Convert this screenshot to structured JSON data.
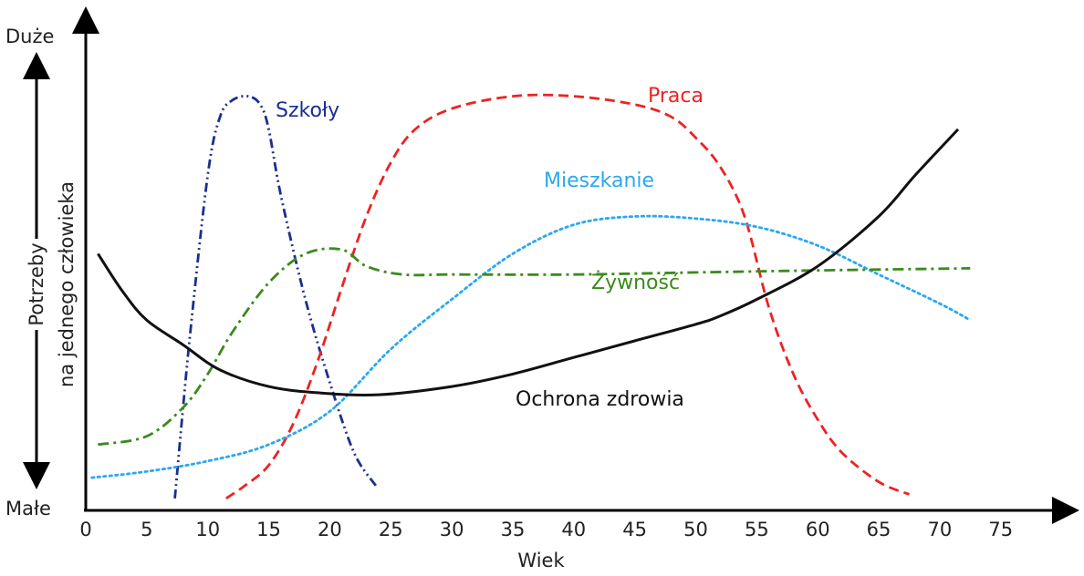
{
  "chart_data": {
    "type": "line",
    "xlabel": "Wiek",
    "ylabel_line1": "Potrzeby",
    "ylabel_line2": "na jednego człowieka",
    "y_top_label": "Duże",
    "y_bottom_label": "Małe",
    "xlim": [
      0,
      80
    ],
    "ylim": [
      0,
      100
    ],
    "x_ticks": [
      0,
      5,
      10,
      15,
      20,
      25,
      30,
      35,
      40,
      45,
      50,
      55,
      60,
      65,
      70,
      75
    ],
    "grid": false,
    "legend": "none",
    "series": [
      {
        "name": "Szkoły",
        "color": "#1a2f8f",
        "dash": "dashdotdot",
        "points": [
          [
            7.3,
            2
          ],
          [
            8.5,
            40
          ],
          [
            10,
            80
          ],
          [
            11,
            94
          ],
          [
            12,
            98
          ],
          [
            13.3,
            99
          ],
          [
            14.3,
            97
          ],
          [
            15,
            91
          ],
          [
            16,
            75
          ],
          [
            18,
            50
          ],
          [
            20,
            30
          ],
          [
            22,
            13
          ],
          [
            23.8,
            5
          ]
        ]
      },
      {
        "name": "Praca",
        "color": "#ee2222",
        "dash": "dash",
        "points": [
          [
            11.5,
            2
          ],
          [
            13,
            5
          ],
          [
            15,
            10
          ],
          [
            17,
            20
          ],
          [
            19,
            35
          ],
          [
            21,
            53
          ],
          [
            23,
            70
          ],
          [
            25,
            83
          ],
          [
            27,
            91
          ],
          [
            30,
            96
          ],
          [
            35,
            99
          ],
          [
            40,
            99
          ],
          [
            45,
            97
          ],
          [
            48,
            94
          ],
          [
            50,
            89
          ],
          [
            52,
            82
          ],
          [
            54,
            70
          ],
          [
            56,
            48
          ],
          [
            58,
            32
          ],
          [
            60,
            21
          ],
          [
            62,
            13
          ],
          [
            65,
            6
          ],
          [
            67.5,
            3
          ]
        ]
      },
      {
        "name": "Mieszkanie",
        "color": "#2aa8f0",
        "dash": "dot",
        "points": [
          [
            0.5,
            7
          ],
          [
            5,
            8.5
          ],
          [
            10,
            11
          ],
          [
            15,
            15
          ],
          [
            20,
            23
          ],
          [
            25,
            38
          ],
          [
            30,
            50
          ],
          [
            35,
            61
          ],
          [
            40,
            68
          ],
          [
            45,
            70
          ],
          [
            50,
            69.5
          ],
          [
            55,
            67.5
          ],
          [
            60,
            63
          ],
          [
            65,
            56
          ],
          [
            70,
            49
          ],
          [
            72.5,
            45
          ]
        ]
      },
      {
        "name": "Żywność",
        "color": "#3a8a1c",
        "dash": "dashdot",
        "points": [
          [
            1,
            15
          ],
          [
            5,
            17
          ],
          [
            8,
            24
          ],
          [
            10,
            32
          ],
          [
            12,
            42
          ],
          [
            15,
            54
          ],
          [
            18,
            61
          ],
          [
            21,
            62
          ],
          [
            23,
            58
          ],
          [
            26,
            56
          ],
          [
            30,
            56
          ],
          [
            40,
            56
          ],
          [
            50,
            56.5
          ],
          [
            60,
            57
          ],
          [
            72.5,
            57.5
          ]
        ]
      },
      {
        "name": "Ochrona zdrowia",
        "color": "#111111",
        "dash": "solid",
        "points": [
          [
            1,
            61
          ],
          [
            3,
            52
          ],
          [
            5,
            45
          ],
          [
            8,
            39
          ],
          [
            11,
            33
          ],
          [
            15,
            29
          ],
          [
            19,
            27.5
          ],
          [
            24,
            27
          ],
          [
            30,
            29
          ],
          [
            35,
            32
          ],
          [
            40,
            36
          ],
          [
            45,
            40
          ],
          [
            50,
            44
          ],
          [
            52,
            46
          ],
          [
            55,
            50
          ],
          [
            60,
            58
          ],
          [
            65,
            70
          ],
          [
            68,
            80
          ],
          [
            71.5,
            91
          ]
        ]
      }
    ]
  }
}
